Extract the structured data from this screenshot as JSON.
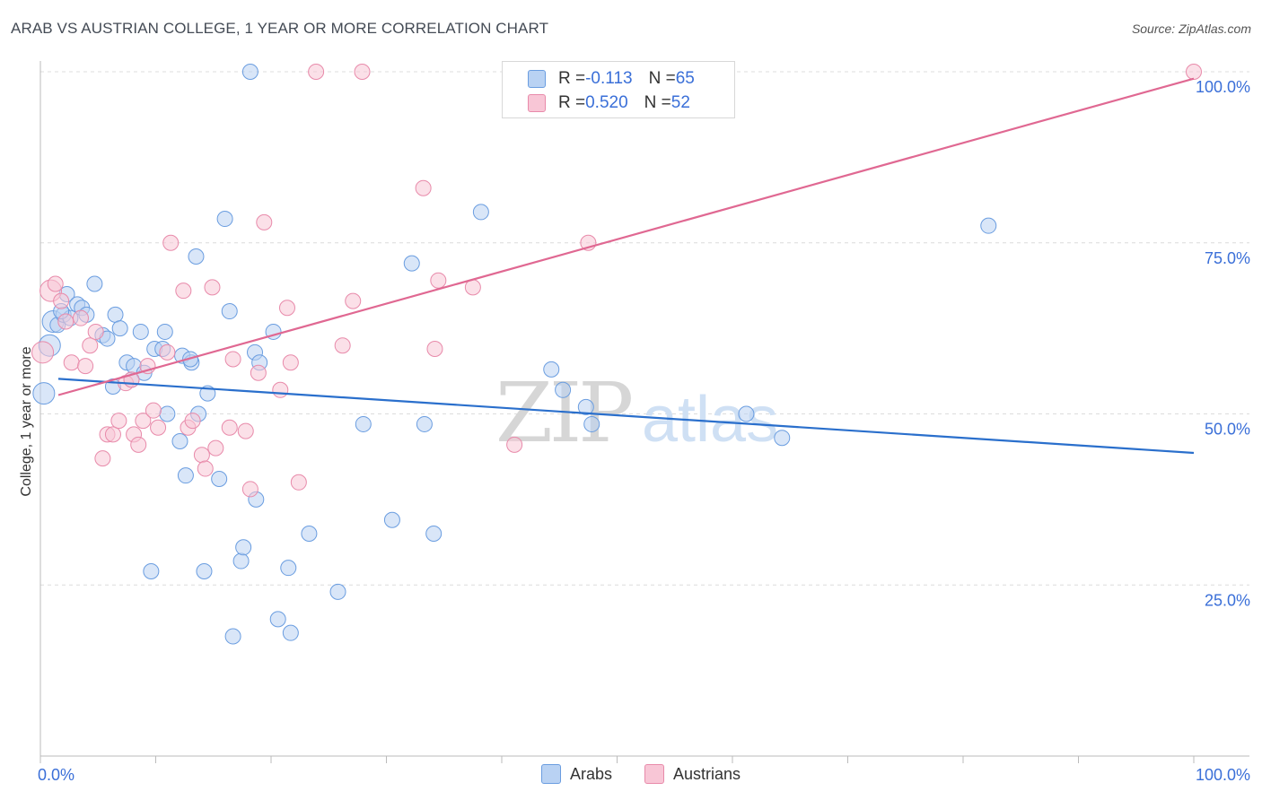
{
  "title": "ARAB VS AUSTRIAN COLLEGE, 1 YEAR OR MORE CORRELATION CHART",
  "source": "Source: ZipAtlas.com",
  "watermark": {
    "zip": "ZIP",
    "atlas": "atlas"
  },
  "legend": {
    "rows": [
      {
        "r_label": "R = ",
        "r_value": "-0.113",
        "n_label": "N = ",
        "n_value": "65"
      },
      {
        "r_label": "R = ",
        "r_value": "0.520",
        "n_label": "N = ",
        "n_value": "52"
      }
    ]
  },
  "colors": {
    "arabs_fill": "#b9d2f3",
    "arabs_stroke": "#6a9de0",
    "arabs_line": "#2a6fcc",
    "austrians_fill": "#f8c6d6",
    "austrians_stroke": "#e88aaa",
    "austrians_line": "#e06892",
    "axis_text": "#3a6fd8"
  },
  "chart_data": {
    "type": "scatter",
    "title": "ARAB VS AUSTRIAN COLLEGE, 1 YEAR OR MORE CORRELATION CHART",
    "xlabel": "",
    "ylabel": "College, 1 year or more",
    "xlim": [
      0,
      100
    ],
    "ylim": [
      0,
      101
    ],
    "x_tick_labels": [
      "0.0%",
      "100.0%"
    ],
    "y_tick_values": [
      25,
      50,
      75,
      100
    ],
    "y_tick_labels": [
      "25.0%",
      "50.0%",
      "75.0%",
      "100.0%"
    ],
    "series": [
      {
        "name": "Arabs",
        "trend": {
          "x": [
            0,
            100
          ],
          "y": [
            55.3,
            44.3
          ]
        },
        "points": [
          {
            "x": 0.3,
            "y": 53.0
          },
          {
            "x": 0.8,
            "y": 60.0
          },
          {
            "x": 1.1,
            "y": 63.5
          },
          {
            "x": 1.5,
            "y": 63.0
          },
          {
            "x": 2.0,
            "y": 64.5
          },
          {
            "x": 2.3,
            "y": 67.5
          },
          {
            "x": 2.6,
            "y": 64.0
          },
          {
            "x": 3.2,
            "y": 66.0
          },
          {
            "x": 3.6,
            "y": 65.5
          },
          {
            "x": 4.0,
            "y": 64.5
          },
          {
            "x": 4.7,
            "y": 69.0
          },
          {
            "x": 5.4,
            "y": 61.5
          },
          {
            "x": 5.8,
            "y": 61.0
          },
          {
            "x": 6.3,
            "y": 54.0
          },
          {
            "x": 6.5,
            "y": 64.5
          },
          {
            "x": 6.9,
            "y": 62.5
          },
          {
            "x": 7.5,
            "y": 57.5
          },
          {
            "x": 7.9,
            "y": 55.0
          },
          {
            "x": 8.1,
            "y": 57.0
          },
          {
            "x": 8.7,
            "y": 62.0
          },
          {
            "x": 9.0,
            "y": 56.0
          },
          {
            "x": 9.6,
            "y": 27.0
          },
          {
            "x": 9.9,
            "y": 59.5
          },
          {
            "x": 10.6,
            "y": 59.5
          },
          {
            "x": 10.8,
            "y": 62.0
          },
          {
            "x": 11.0,
            "y": 50.0
          },
          {
            "x": 12.1,
            "y": 46.0
          },
          {
            "x": 12.3,
            "y": 58.5
          },
          {
            "x": 12.6,
            "y": 41.0
          },
          {
            "x": 13.1,
            "y": 57.5
          },
          {
            "x": 13.5,
            "y": 73.0
          },
          {
            "x": 13.7,
            "y": 50.0
          },
          {
            "x": 14.2,
            "y": 27.0
          },
          {
            "x": 14.5,
            "y": 53.0
          },
          {
            "x": 15.5,
            "y": 40.5
          },
          {
            "x": 16.0,
            "y": 78.5
          },
          {
            "x": 16.4,
            "y": 65.0
          },
          {
            "x": 16.7,
            "y": 17.5
          },
          {
            "x": 17.4,
            "y": 28.5
          },
          {
            "x": 17.6,
            "y": 30.5
          },
          {
            "x": 18.2,
            "y": 100.0
          },
          {
            "x": 18.6,
            "y": 59.0
          },
          {
            "x": 18.7,
            "y": 37.5
          },
          {
            "x": 19.0,
            "y": 57.5
          },
          {
            "x": 20.2,
            "y": 62.0
          },
          {
            "x": 20.6,
            "y": 20.0
          },
          {
            "x": 21.5,
            "y": 27.5
          },
          {
            "x": 21.7,
            "y": 18.0
          },
          {
            "x": 23.3,
            "y": 32.5
          },
          {
            "x": 25.8,
            "y": 24.0
          },
          {
            "x": 28.0,
            "y": 48.5
          },
          {
            "x": 30.5,
            "y": 34.5
          },
          {
            "x": 32.2,
            "y": 72.0
          },
          {
            "x": 33.3,
            "y": 48.5
          },
          {
            "x": 34.1,
            "y": 32.5
          },
          {
            "x": 38.2,
            "y": 79.5
          },
          {
            "x": 44.3,
            "y": 56.5
          },
          {
            "x": 45.3,
            "y": 53.5
          },
          {
            "x": 47.3,
            "y": 51.0
          },
          {
            "x": 47.8,
            "y": 48.5
          },
          {
            "x": 61.2,
            "y": 50.0
          },
          {
            "x": 64.3,
            "y": 46.5
          },
          {
            "x": 82.2,
            "y": 77.5
          },
          {
            "x": 1.8,
            "y": 65.0
          },
          {
            "x": 13.0,
            "y": 58.0
          }
        ]
      },
      {
        "name": "Austrians",
        "trend": {
          "x": [
            0,
            100
          ],
          "y": [
            52.0,
            99.0
          ]
        },
        "points": [
          {
            "x": 0.2,
            "y": 59.0
          },
          {
            "x": 0.9,
            "y": 68.0
          },
          {
            "x": 1.3,
            "y": 69.0
          },
          {
            "x": 1.8,
            "y": 66.5
          },
          {
            "x": 2.2,
            "y": 63.5
          },
          {
            "x": 2.7,
            "y": 57.5
          },
          {
            "x": 3.5,
            "y": 64.0
          },
          {
            "x": 3.9,
            "y": 57.0
          },
          {
            "x": 4.3,
            "y": 60.0
          },
          {
            "x": 4.8,
            "y": 62.0
          },
          {
            "x": 5.4,
            "y": 43.5
          },
          {
            "x": 5.8,
            "y": 47.0
          },
          {
            "x": 6.3,
            "y": 47.0
          },
          {
            "x": 6.8,
            "y": 49.0
          },
          {
            "x": 7.4,
            "y": 54.5
          },
          {
            "x": 7.9,
            "y": 55.0
          },
          {
            "x": 8.1,
            "y": 47.0
          },
          {
            "x": 8.5,
            "y": 45.5
          },
          {
            "x": 8.9,
            "y": 49.0
          },
          {
            "x": 9.3,
            "y": 57.0
          },
          {
            "x": 9.8,
            "y": 50.5
          },
          {
            "x": 10.2,
            "y": 48.0
          },
          {
            "x": 11.0,
            "y": 59.0
          },
          {
            "x": 11.3,
            "y": 75.0
          },
          {
            "x": 12.4,
            "y": 68.0
          },
          {
            "x": 12.8,
            "y": 48.0
          },
          {
            "x": 13.2,
            "y": 49.0
          },
          {
            "x": 14.0,
            "y": 44.0
          },
          {
            "x": 14.3,
            "y": 42.0
          },
          {
            "x": 14.9,
            "y": 68.5
          },
          {
            "x": 15.2,
            "y": 45.0
          },
          {
            "x": 16.4,
            "y": 48.0
          },
          {
            "x": 16.7,
            "y": 58.0
          },
          {
            "x": 17.8,
            "y": 47.5
          },
          {
            "x": 18.2,
            "y": 39.0
          },
          {
            "x": 18.9,
            "y": 56.0
          },
          {
            "x": 19.4,
            "y": 78.0
          },
          {
            "x": 20.8,
            "y": 53.5
          },
          {
            "x": 21.4,
            "y": 65.5
          },
          {
            "x": 21.7,
            "y": 57.5
          },
          {
            "x": 22.4,
            "y": 40.0
          },
          {
            "x": 23.9,
            "y": 100.0
          },
          {
            "x": 26.2,
            "y": 60.0
          },
          {
            "x": 27.1,
            "y": 66.5
          },
          {
            "x": 27.9,
            "y": 100.0
          },
          {
            "x": 33.2,
            "y": 83.0
          },
          {
            "x": 34.2,
            "y": 59.5
          },
          {
            "x": 34.5,
            "y": 69.5
          },
          {
            "x": 37.5,
            "y": 68.5
          },
          {
            "x": 41.1,
            "y": 45.5
          },
          {
            "x": 47.5,
            "y": 75.0
          },
          {
            "x": 100.0,
            "y": 100.0
          }
        ]
      }
    ],
    "bottom_legend": [
      "Arabs",
      "Austrians"
    ]
  }
}
